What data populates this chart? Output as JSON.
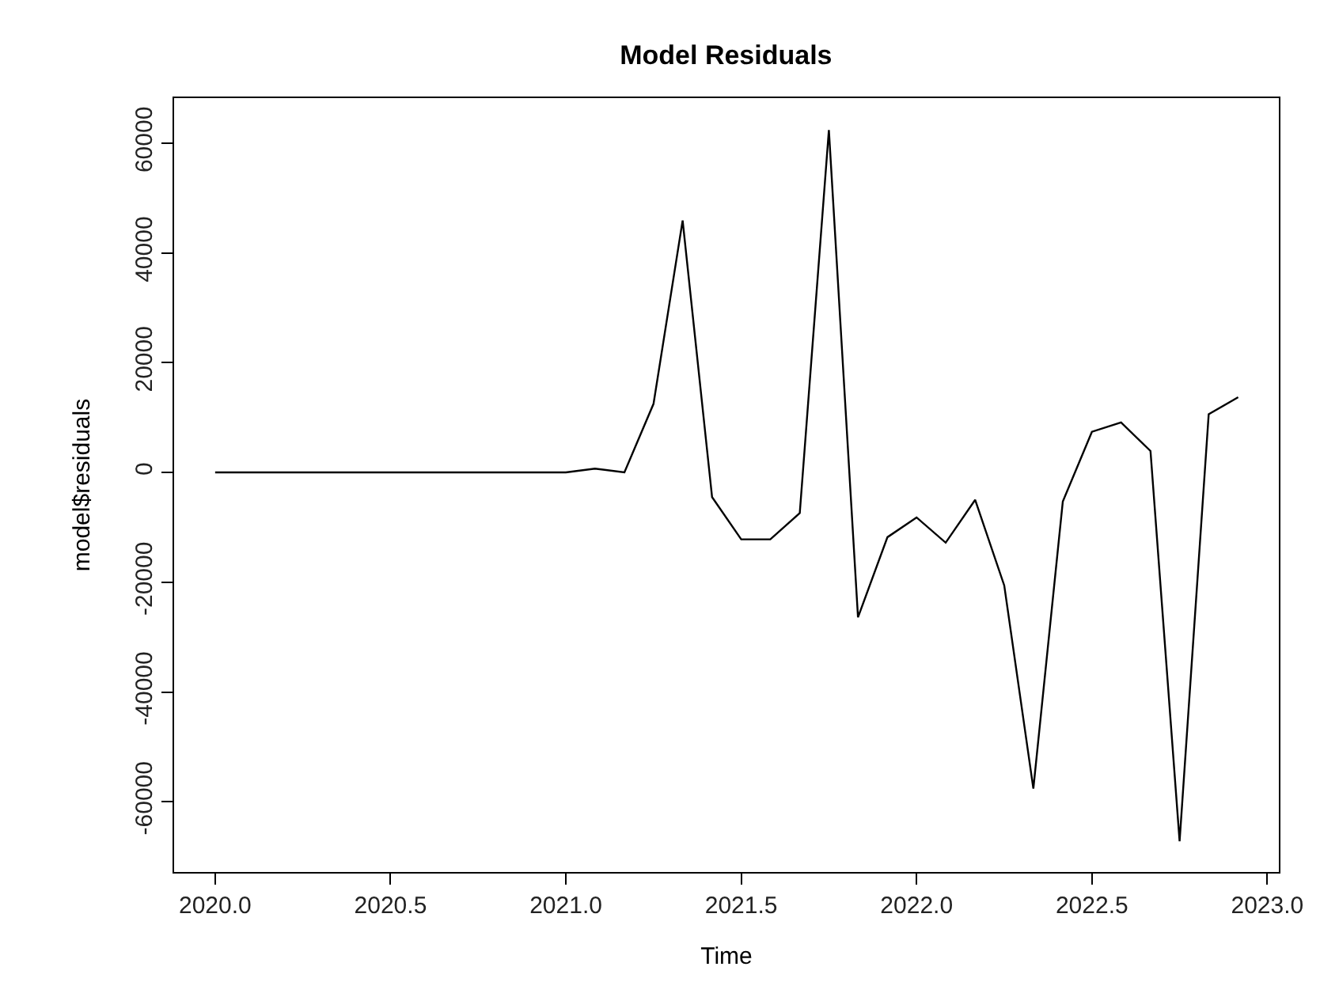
{
  "chart_data": {
    "type": "line",
    "title": "Model Residuals",
    "xlabel": "Time",
    "ylabel": "model$residuals",
    "x": [
      2020,
      2020.083,
      2020.167,
      2020.25,
      2020.333,
      2020.417,
      2020.5,
      2020.583,
      2020.667,
      2020.75,
      2020.833,
      2020.917,
      2021,
      2021.083,
      2021.167,
      2021.25,
      2021.333,
      2021.417,
      2021.5,
      2021.583,
      2021.667,
      2021.75,
      2021.833,
      2021.917,
      2022,
      2022.083,
      2022.167,
      2022.25,
      2022.333,
      2022.417,
      2022.5,
      2022.583,
      2022.667,
      2022.75,
      2022.833,
      2022.917
    ],
    "series": [
      {
        "color": "#000000",
        "values": [
          0,
          0,
          0,
          0,
          0,
          0,
          0,
          0,
          0,
          0,
          0,
          0,
          0,
          700,
          0,
          12500,
          45900,
          -4500,
          -12200,
          -12200,
          -7400,
          62400,
          -26400,
          -11800,
          -8200,
          -12800,
          -5000,
          -20600,
          -57600,
          -5300,
          7400,
          9100,
          3900,
          -67200,
          10600,
          13700
        ]
      }
    ],
    "xlim": [
      2019.883,
      2023.033
    ],
    "xticks": [
      {
        "value": 2020,
        "label": "2020.0"
      },
      {
        "value": 2020.5,
        "label": "2020.5"
      },
      {
        "value": 2021,
        "label": "2021.0"
      },
      {
        "value": 2021.5,
        "label": "2021.5"
      },
      {
        "value": 2022,
        "label": "2022.0"
      },
      {
        "value": 2022.5,
        "label": "2022.5"
      },
      {
        "value": 2023,
        "label": "2023.0"
      }
    ],
    "ylim": [
      -72800,
      68200
    ],
    "yticks": [
      -60000,
      -40000,
      -20000,
      0,
      20000,
      40000,
      60000
    ],
    "grid": false,
    "marker": "none",
    "line_style": "solid"
  }
}
